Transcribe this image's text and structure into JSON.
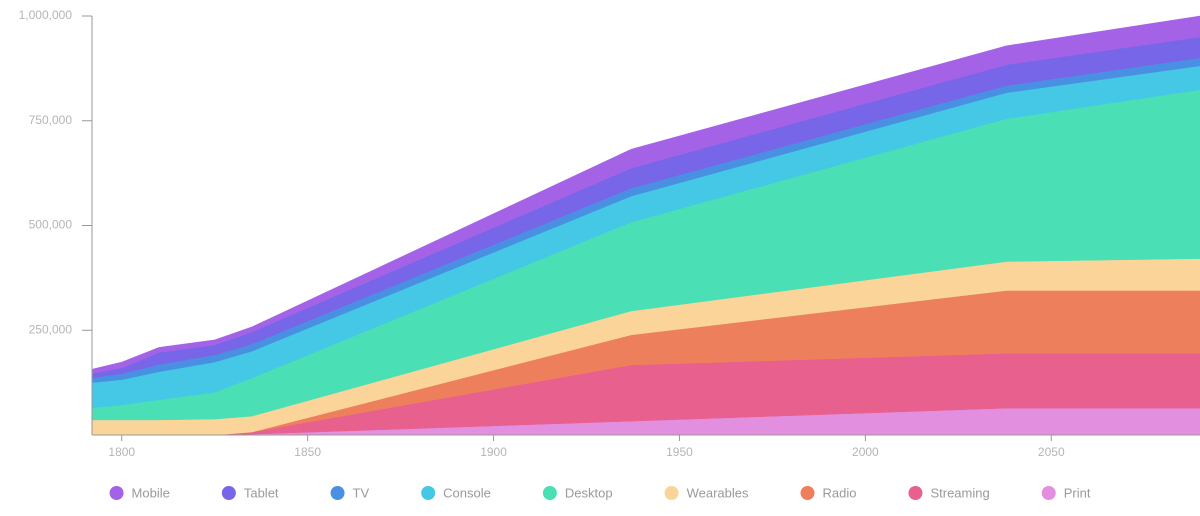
{
  "chart_data": {
    "type": "stacked-area",
    "x": [
      1792,
      1800,
      1810,
      1825,
      1835,
      1937,
      2038,
      2090
    ],
    "xlim": [
      1792,
      2090
    ],
    "xticks": [
      1800,
      1850,
      1900,
      1950,
      2000,
      2050
    ],
    "ylim": [
      0,
      1000000
    ],
    "yticks": [
      {
        "value": 250000,
        "label": "250,000"
      },
      {
        "value": 500000,
        "label": "500,000"
      },
      {
        "value": 750000,
        "label": "750,000"
      },
      {
        "value": 1000000,
        "label": "1,000,000"
      }
    ],
    "series": [
      {
        "name": "Mobile",
        "color": "#a463e6",
        "values": [
          10000,
          14000,
          12000,
          12000,
          12000,
          45000,
          45000,
          50000
        ]
      },
      {
        "name": "Tablet",
        "color": "#7866e8",
        "values": [
          10000,
          14000,
          29000,
          24000,
          29000,
          48000,
          50000,
          50000
        ]
      },
      {
        "name": "TV",
        "color": "#4a90e2",
        "values": [
          12000,
          14000,
          17000,
          17000,
          17000,
          19000,
          17000,
          19000
        ]
      },
      {
        "name": "Console",
        "color": "#45c8e6",
        "values": [
          60000,
          60000,
          67000,
          72000,
          64000,
          62000,
          62000,
          57000
        ]
      },
      {
        "name": "Desktop",
        "color": "#4adfb5",
        "values": [
          29000,
          36000,
          48000,
          64000,
          91000,
          212000,
          341000,
          403000
        ]
      },
      {
        "name": "Wearables",
        "color": "#fbd49a",
        "values": [
          36000,
          36000,
          36000,
          38000,
          38000,
          57000,
          69000,
          76000
        ]
      },
      {
        "name": "Radio",
        "color": "#ee7f5c",
        "values": [
          0,
          0,
          0,
          0,
          0,
          72000,
          150000,
          150000
        ]
      },
      {
        "name": "Streaming",
        "color": "#e8608e",
        "values": [
          0,
          0,
          0,
          0,
          5000,
          134000,
          131000,
          131000
        ]
      },
      {
        "name": "Print",
        "color": "#e28fe0",
        "values": [
          0,
          0,
          0,
          0,
          2000,
          33000,
          64000,
          64000
        ]
      }
    ]
  }
}
